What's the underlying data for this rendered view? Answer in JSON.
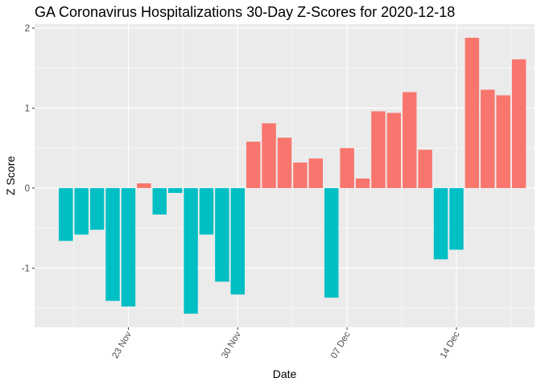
{
  "chart_data": {
    "type": "bar",
    "title": "GA Coronavirus Hospitalizations 30-Day Z-Scores for 2020-12-18",
    "xlabel": "Date",
    "ylabel": "Z Score",
    "x": [
      "2020-11-19",
      "2020-11-20",
      "2020-11-21",
      "2020-11-22",
      "2020-11-23",
      "2020-11-24",
      "2020-11-25",
      "2020-11-26",
      "2020-11-27",
      "2020-11-28",
      "2020-11-29",
      "2020-11-30",
      "2020-12-01",
      "2020-12-02",
      "2020-12-03",
      "2020-12-04",
      "2020-12-05",
      "2020-12-06",
      "2020-12-07",
      "2020-12-08",
      "2020-12-09",
      "2020-12-10",
      "2020-12-11",
      "2020-12-12",
      "2020-12-13",
      "2020-12-14",
      "2020-12-15",
      "2020-12-16",
      "2020-12-17",
      "2020-12-18"
    ],
    "values": [
      -0.66,
      -0.58,
      -0.52,
      -1.41,
      -1.48,
      0.06,
      -0.33,
      -0.06,
      -1.57,
      -0.58,
      -1.17,
      -1.33,
      0.58,
      0.81,
      0.63,
      0.32,
      0.37,
      -1.37,
      0.5,
      0.12,
      0.96,
      0.94,
      1.2,
      0.48,
      -0.89,
      -0.77,
      1.88,
      1.23,
      1.16,
      1.61
    ],
    "colors": {
      "positive": "#F8766D",
      "negative": "#00BFC4"
    },
    "x_ticks": [
      {
        "date": "2020-11-23",
        "label": "23 Nov"
      },
      {
        "date": "2020-11-30",
        "label": "30 Nov"
      },
      {
        "date": "2020-12-07",
        "label": "07 Dec"
      },
      {
        "date": "2020-12-14",
        "label": "14 Dec"
      }
    ],
    "y_ticks": [
      -1,
      0,
      1,
      2
    ],
    "y_tick_labels": [
      "-1",
      "0",
      "1",
      "2"
    ],
    "ylim": [
      -1.74,
      2.05
    ],
    "xlim": [
      "2020-11-17",
      "2020-12-19"
    ],
    "panel_background": "#EBEBEB",
    "grid": true,
    "legend": "none"
  }
}
